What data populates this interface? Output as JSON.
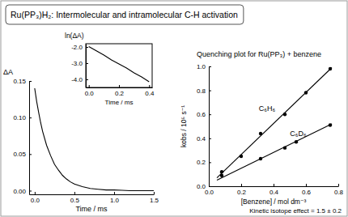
{
  "slide": {
    "title": "Ru(PP₃)H₂: Intermolecular and intramolecular C-H activation",
    "note": "Kinetic isotope effect = 1.5 ± 0.2"
  },
  "chart_data": [
    {
      "type": "line",
      "y_label": "ΔA",
      "x_label": "Time / ms",
      "color": "#000000",
      "x": [
        0,
        0.025,
        0.05,
        0.075,
        0.1,
        0.15,
        0.2,
        0.25,
        0.3,
        0.35,
        0.4,
        0.45,
        0.5,
        0.6,
        0.7,
        0.8,
        0.9,
        1.0,
        1.1,
        1.2,
        1.3,
        1.4,
        1.5
      ],
      "values": [
        0.14,
        0.122,
        0.107,
        0.093,
        0.081,
        0.062,
        0.048,
        0.036,
        0.028,
        0.021,
        0.016,
        0.012,
        0.009,
        0.0055,
        0.003,
        0.002,
        0.001,
        0.001,
        0.0005,
        0,
        0,
        0,
        0
      ],
      "xlim": [
        -0.07,
        1.5
      ],
      "ylim": [
        -0.005,
        0.15
      ],
      "xticks": [
        {
          "value": 0,
          "label": "0.0"
        },
        0.5,
        {
          "value": 1,
          "label": "1.0"
        },
        1.5
      ],
      "yticks": [
        {
          "value": 0,
          "label": "0.00"
        },
        0.05,
        {
          "value": 0.1,
          "label": "0.10"
        },
        0.15
      ]
    },
    {
      "type": "line",
      "title": "ln(ΔA)",
      "x_label": "Time / ms",
      "color": "#000000",
      "x": [
        0,
        0.05,
        0.1,
        0.15,
        0.2,
        0.25,
        0.3,
        0.35,
        0.4
      ],
      "values": [
        -1.97,
        -2.24,
        -2.5,
        -2.8,
        -3.05,
        -3.3,
        -3.6,
        -3.85,
        -4.15
      ],
      "xlim": [
        -0.02,
        0.42
      ],
      "ylim": [
        -4.5,
        -1.8
      ],
      "xticks": [
        {
          "value": 0,
          "label": "0.0"
        },
        0.2,
        0.4
      ],
      "yticks": [
        {
          "value": -2,
          "label": "-2.0"
        },
        {
          "value": -3,
          "label": "-3.0"
        },
        {
          "value": -4,
          "label": "-4.0"
        }
      ]
    },
    {
      "type": "scatter",
      "title": "Quenching plot for Ru(PP₃) + benzene",
      "x_label": "[Benzene] / mol dm⁻³",
      "y_label": "kobs / 10⁵ s⁻¹",
      "xlim": [
        0,
        0.8
      ],
      "ylim": [
        0,
        1.0
      ],
      "xticks": [
        {
          "value": 0,
          "label": "0.0"
        },
        0.2,
        0.4,
        0.6,
        0.8
      ],
      "yticks": [
        {
          "value": 0,
          "label": "0.0"
        },
        0.2,
        0.4,
        0.6,
        0.8,
        {
          "value": 1,
          "label": "1.0"
        }
      ],
      "series": [
        {
          "name": "C₆H₆",
          "color": "#000000",
          "marker": "circle",
          "x": [
            0.08,
            0.2,
            0.32,
            0.47,
            0.6,
            0.75
          ],
          "values": [
            0.12,
            0.25,
            0.44,
            0.6,
            0.78,
            0.98
          ],
          "fit": {
            "x": [
              0.05,
              0.76
            ],
            "values": [
              0.07,
              0.99
            ]
          }
        },
        {
          "name": "C₆D₆",
          "color": "#000000",
          "marker": "circle",
          "x": [
            0.08,
            0.32,
            0.47,
            0.54,
            0.75
          ],
          "values": [
            0.09,
            0.23,
            0.32,
            0.37,
            0.51
          ],
          "fit": {
            "x": [
              0.05,
              0.76
            ],
            "values": [
              0.05,
              0.52
            ]
          }
        }
      ]
    }
  ]
}
